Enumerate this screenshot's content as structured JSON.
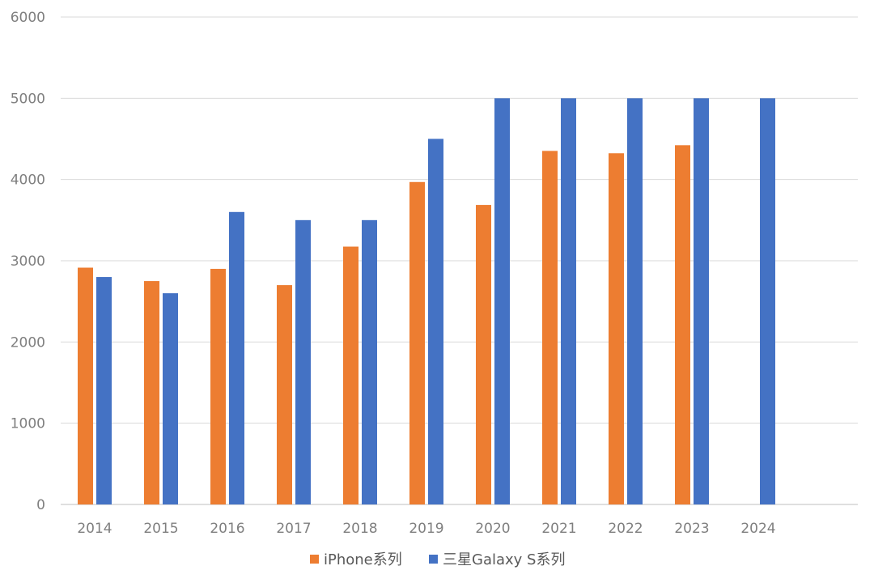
{
  "chart_data": {
    "type": "bar",
    "title": "",
    "xlabel": "",
    "ylabel": "",
    "ylim": [
      0,
      6000
    ],
    "yticks": [
      0,
      1000,
      2000,
      3000,
      4000,
      5000,
      6000
    ],
    "grid": true,
    "legend_position": "bottom",
    "categories": [
      "2014",
      "2015",
      "2016",
      "2017",
      "2018",
      "2019",
      "2020",
      "2021",
      "2022",
      "2023",
      "2024"
    ],
    "series": [
      {
        "name": "iPhone系列",
        "color": "#ED7D31",
        "values": [
          2915,
          2750,
          2900,
          2700,
          3174,
          3969,
          3687,
          4352,
          4323,
          4422,
          null
        ]
      },
      {
        "name": "三星Galaxy S系列",
        "color": "#4472C4",
        "values": [
          2800,
          2600,
          3600,
          3500,
          3500,
          4500,
          5000,
          5000,
          5000,
          5000,
          5000
        ]
      }
    ]
  }
}
